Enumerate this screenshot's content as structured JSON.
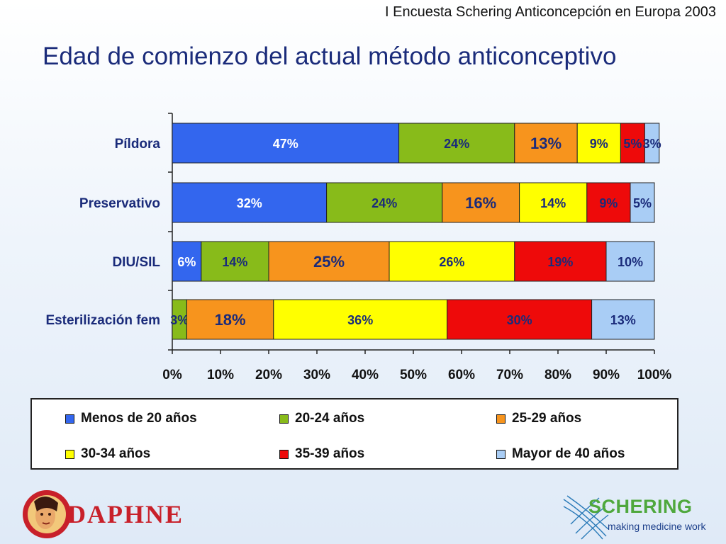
{
  "header": {
    "survey": "I Encuesta Schering Anticoncepción en Europa 2003",
    "title": "Edad de comienzo del actual método anticonceptivo"
  },
  "chart_data": {
    "type": "bar",
    "orientation": "horizontal",
    "stacked": "percent",
    "categories": [
      "Píldora",
      "Preservativo",
      "DIU/SIL",
      "Esterilización fem"
    ],
    "series": [
      {
        "name": "Menos de 20 años",
        "color": "#3366ee",
        "values": [
          47,
          32,
          6,
          0
        ]
      },
      {
        "name": "20-24 años",
        "color": "#88bb1a",
        "values": [
          24,
          24,
          14,
          3
        ]
      },
      {
        "name": "25-29 años",
        "color": "#f7941d",
        "values": [
          13,
          16,
          25,
          18
        ]
      },
      {
        "name": "30-34 años",
        "color": "#ffff00",
        "values": [
          9,
          14,
          26,
          36
        ]
      },
      {
        "name": "35-39 años",
        "color": "#ee0a0a",
        "values": [
          5,
          9,
          19,
          30
        ]
      },
      {
        "name": "Mayor de 40 años",
        "color": "#a9cdf5",
        "values": [
          3,
          5,
          10,
          13
        ]
      }
    ],
    "data_labels": [
      [
        "47%",
        "24%",
        "13%",
        "9%",
        "5%",
        "3%"
      ],
      [
        "32%",
        "24%",
        "16%",
        "14%",
        "9%",
        "5%"
      ],
      [
        "6%",
        "14%",
        "25%",
        "26%",
        "19%",
        "10%"
      ],
      [
        "",
        "3%",
        "18%",
        "36%",
        "30%",
        "13%"
      ]
    ],
    "label_colors": [
      "#ffffff",
      "#1a2b7a",
      "#1a2b7a",
      "#1a2b7a",
      "#1a2b7a",
      "#1a2b7a"
    ],
    "x_ticks": [
      "0%",
      "10%",
      "20%",
      "30%",
      "40%",
      "50%",
      "60%",
      "70%",
      "80%",
      "90%",
      "100%"
    ],
    "xlim": [
      0,
      100
    ],
    "grid": false,
    "legend_position": "bottom"
  },
  "logos": {
    "left": "DAPHNE",
    "right_name": "SCHERING",
    "right_tagline": "making medicine work"
  }
}
